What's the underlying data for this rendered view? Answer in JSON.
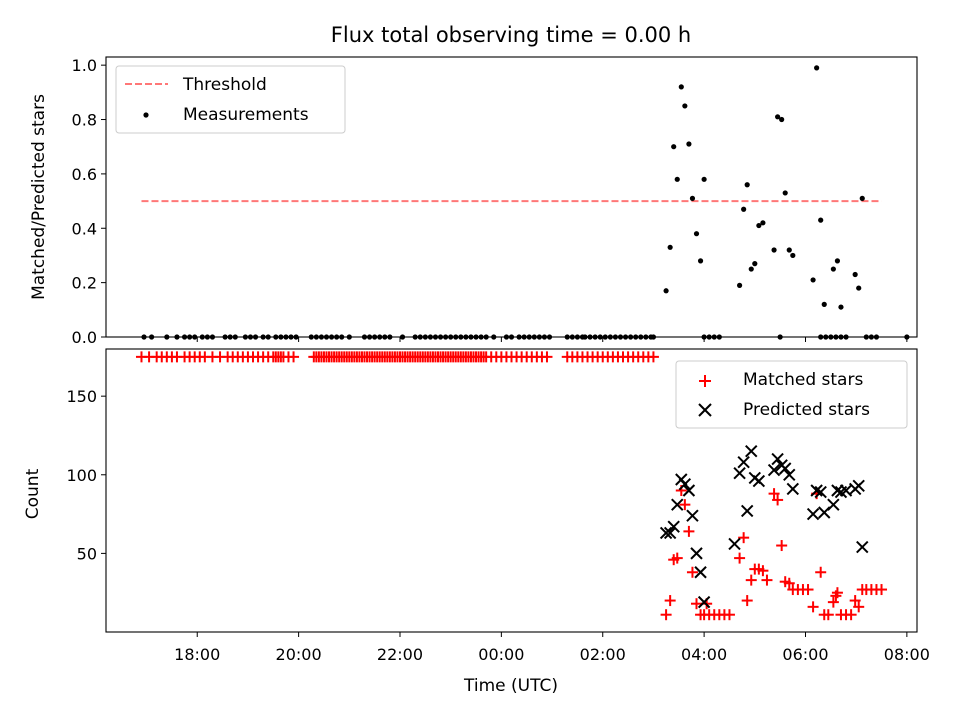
{
  "chart_data": {
    "title": "Flux total observing time = 0.00 h",
    "xlabel": "Time (UTC)",
    "x_unit": "hours (UTC, day-wrapped)",
    "xlim": [
      16.2,
      32.2
    ],
    "x_ticks": [
      {
        "x": 18,
        "label": "18:00"
      },
      {
        "x": 20,
        "label": "20:00"
      },
      {
        "x": 22,
        "label": "22:00"
      },
      {
        "x": 24,
        "label": "00:00"
      },
      {
        "x": 26,
        "label": "02:00"
      },
      {
        "x": 28,
        "label": "04:00"
      },
      {
        "x": 30,
        "label": "06:00"
      },
      {
        "x": 32,
        "label": "08:00"
      }
    ],
    "panels": [
      {
        "id": "ratio",
        "type": "scatter",
        "ylabel": "Matched/Predicted stars",
        "ylim": [
          0,
          1.03
        ],
        "y_ticks": [
          0.0,
          0.2,
          0.4,
          0.6,
          0.8,
          1.0
        ],
        "y_tick_labels": [
          "0.0",
          "0.2",
          "0.4",
          "0.6",
          "0.8",
          "1.0"
        ],
        "legend": {
          "position": "top-left",
          "entries": [
            "Threshold",
            "Measurements"
          ]
        },
        "threshold": {
          "name": "Threshold",
          "y": 0.5,
          "x_range": [
            16.9,
            31.5
          ],
          "color": "#ff7777"
        },
        "measurements": {
          "name": "Measurements",
          "color": "#000000",
          "zero_x": [
            16.95,
            17.1,
            17.4,
            17.6,
            17.75,
            17.85,
            17.95,
            18.1,
            18.2,
            18.3,
            18.55,
            18.65,
            18.75,
            18.95,
            19.05,
            19.15,
            19.3,
            19.4,
            19.55,
            19.65,
            19.75,
            19.85,
            19.95,
            20.25,
            20.35,
            20.45,
            20.55,
            20.65,
            20.75,
            20.85,
            21.0,
            21.3,
            21.4,
            21.5,
            21.6,
            21.7,
            21.8,
            22.05,
            22.3,
            22.4,
            22.5,
            22.6,
            22.7,
            22.8,
            22.9,
            23.0,
            23.1,
            23.2,
            23.3,
            23.4,
            23.5,
            23.6,
            23.7,
            23.85,
            24.1,
            24.2,
            24.35,
            24.45,
            24.55,
            24.65,
            24.75,
            24.85,
            24.95,
            25.3,
            25.4,
            25.5,
            25.6,
            25.65,
            25.75,
            25.85,
            25.95,
            26.05,
            26.15,
            26.25,
            26.35,
            26.45,
            26.55,
            26.65,
            26.75,
            26.85,
            26.95,
            27.0,
            28.0,
            28.1,
            28.2,
            28.3,
            29.5,
            30.3,
            30.4,
            30.5,
            30.6,
            30.7,
            30.8,
            31.2,
            31.3,
            31.4,
            32.0
          ],
          "points": [
            {
              "x": 27.25,
              "y": 0.17
            },
            {
              "x": 27.33,
              "y": 0.33
            },
            {
              "x": 27.4,
              "y": 0.7
            },
            {
              "x": 27.47,
              "y": 0.58
            },
            {
              "x": 27.55,
              "y": 0.92
            },
            {
              "x": 27.62,
              "y": 0.85
            },
            {
              "x": 27.7,
              "y": 0.71
            },
            {
              "x": 27.77,
              "y": 0.51
            },
            {
              "x": 27.85,
              "y": 0.38
            },
            {
              "x": 27.93,
              "y": 0.28
            },
            {
              "x": 28.0,
              "y": 0.58
            },
            {
              "x": 28.7,
              "y": 0.19
            },
            {
              "x": 28.78,
              "y": 0.47
            },
            {
              "x": 28.85,
              "y": 0.56
            },
            {
              "x": 28.93,
              "y": 0.25
            },
            {
              "x": 29.0,
              "y": 0.27
            },
            {
              "x": 29.08,
              "y": 0.41
            },
            {
              "x": 29.16,
              "y": 0.42
            },
            {
              "x": 29.38,
              "y": 0.32
            },
            {
              "x": 29.45,
              "y": 0.81
            },
            {
              "x": 29.53,
              "y": 0.8
            },
            {
              "x": 29.6,
              "y": 0.53
            },
            {
              "x": 29.68,
              "y": 0.32
            },
            {
              "x": 29.75,
              "y": 0.3
            },
            {
              "x": 30.15,
              "y": 0.21
            },
            {
              "x": 30.22,
              "y": 0.99
            },
            {
              "x": 30.3,
              "y": 0.43
            },
            {
              "x": 30.37,
              "y": 0.12
            },
            {
              "x": 30.55,
              "y": 0.25
            },
            {
              "x": 30.63,
              "y": 0.28
            },
            {
              "x": 30.7,
              "y": 0.11
            },
            {
              "x": 30.98,
              "y": 0.23
            },
            {
              "x": 31.05,
              "y": 0.18
            },
            {
              "x": 31.12,
              "y": 0.51
            }
          ]
        }
      },
      {
        "id": "counts",
        "type": "scatter",
        "ylabel": "Count",
        "ylim": [
          0,
          180
        ],
        "y_ticks": [
          50,
          100,
          150
        ],
        "y_tick_labels": [
          "50",
          "100",
          "150"
        ],
        "legend": {
          "position": "top-right",
          "entries": [
            "Matched stars",
            "Predicted stars"
          ]
        },
        "series": [
          {
            "name": "Matched stars",
            "marker": "plus",
            "color": "#ff0000",
            "const_x": [
              16.9,
              17.05,
              17.2,
              17.3,
              17.4,
              17.5,
              17.6,
              17.75,
              17.85,
              17.95,
              18.05,
              18.15,
              18.3,
              18.45,
              18.6,
              18.7,
              18.8,
              18.9,
              19.0,
              19.1,
              19.2,
              19.3,
              19.4,
              19.5,
              19.55,
              19.6,
              19.65,
              19.7,
              19.8,
              19.9,
              20.3,
              20.35,
              20.4,
              20.45,
              20.5,
              20.55,
              20.6,
              20.65,
              20.7,
              20.75,
              20.8,
              20.85,
              20.9,
              20.95,
              21.0,
              21.05,
              21.1,
              21.15,
              21.2,
              21.25,
              21.3,
              21.35,
              21.4,
              21.45,
              21.5,
              21.55,
              21.6,
              21.65,
              21.7,
              21.75,
              21.8,
              21.85,
              21.9,
              21.95,
              22.0,
              22.05,
              22.1,
              22.15,
              22.2,
              22.25,
              22.3,
              22.35,
              22.4,
              22.45,
              22.5,
              22.55,
              22.6,
              22.65,
              22.7,
              22.75,
              22.8,
              22.85,
              22.9,
              22.95,
              23.0,
              23.05,
              23.1,
              23.15,
              23.2,
              23.25,
              23.3,
              23.35,
              23.4,
              23.45,
              23.5,
              23.55,
              23.6,
              23.65,
              23.7,
              23.8,
              23.9,
              24.0,
              24.1,
              24.2,
              24.3,
              24.4,
              24.5,
              24.6,
              24.7,
              24.8,
              24.9,
              25.3,
              25.4,
              25.5,
              25.6,
              25.7,
              25.8,
              25.9,
              26.0,
              26.1,
              26.2,
              26.3,
              26.4,
              26.5,
              26.6,
              26.7,
              26.8,
              26.9,
              27.0
            ],
            "const_y": 175,
            "points": [
              {
                "x": 27.25,
                "y": 11
              },
              {
                "x": 27.33,
                "y": 20
              },
              {
                "x": 27.4,
                "y": 46
              },
              {
                "x": 27.47,
                "y": 47
              },
              {
                "x": 27.55,
                "y": 90
              },
              {
                "x": 27.62,
                "y": 81
              },
              {
                "x": 27.7,
                "y": 64
              },
              {
                "x": 27.77,
                "y": 38
              },
              {
                "x": 27.85,
                "y": 18
              },
              {
                "x": 27.93,
                "y": 11
              },
              {
                "x": 28.0,
                "y": 11
              },
              {
                "x": 28.05,
                "y": 18
              },
              {
                "x": 28.1,
                "y": 11
              },
              {
                "x": 28.2,
                "y": 11
              },
              {
                "x": 28.3,
                "y": 11
              },
              {
                "x": 28.4,
                "y": 11
              },
              {
                "x": 28.5,
                "y": 11
              },
              {
                "x": 28.7,
                "y": 47
              },
              {
                "x": 28.78,
                "y": 60
              },
              {
                "x": 28.85,
                "y": 20
              },
              {
                "x": 28.93,
                "y": 33
              },
              {
                "x": 29.0,
                "y": 40
              },
              {
                "x": 29.08,
                "y": 40
              },
              {
                "x": 29.16,
                "y": 39
              },
              {
                "x": 29.24,
                "y": 33
              },
              {
                "x": 29.38,
                "y": 88
              },
              {
                "x": 29.45,
                "y": 84
              },
              {
                "x": 29.53,
                "y": 55
              },
              {
                "x": 29.6,
                "y": 32
              },
              {
                "x": 29.68,
                "y": 31
              },
              {
                "x": 29.75,
                "y": 27
              },
              {
                "x": 29.85,
                "y": 27
              },
              {
                "x": 29.95,
                "y": 27
              },
              {
                "x": 30.05,
                "y": 27
              },
              {
                "x": 30.15,
                "y": 16
              },
              {
                "x": 30.22,
                "y": 88
              },
              {
                "x": 30.3,
                "y": 38
              },
              {
                "x": 30.37,
                "y": 11
              },
              {
                "x": 30.45,
                "y": 11
              },
              {
                "x": 30.55,
                "y": 19
              },
              {
                "x": 30.6,
                "y": 23
              },
              {
                "x": 30.63,
                "y": 25
              },
              {
                "x": 30.7,
                "y": 11
              },
              {
                "x": 30.8,
                "y": 11
              },
              {
                "x": 30.9,
                "y": 11
              },
              {
                "x": 30.98,
                "y": 20
              },
              {
                "x": 31.05,
                "y": 16
              },
              {
                "x": 31.12,
                "y": 27
              },
              {
                "x": 31.2,
                "y": 27
              },
              {
                "x": 31.3,
                "y": 27
              },
              {
                "x": 31.4,
                "y": 27
              },
              {
                "x": 31.5,
                "y": 27
              }
            ]
          },
          {
            "name": "Predicted stars",
            "marker": "x",
            "color": "#000000",
            "points": [
              {
                "x": 27.25,
                "y": 63
              },
              {
                "x": 27.33,
                "y": 63
              },
              {
                "x": 27.4,
                "y": 67
              },
              {
                "x": 27.47,
                "y": 81
              },
              {
                "x": 27.55,
                "y": 97
              },
              {
                "x": 27.62,
                "y": 94
              },
              {
                "x": 27.7,
                "y": 90
              },
              {
                "x": 27.77,
                "y": 74
              },
              {
                "x": 27.85,
                "y": 50
              },
              {
                "x": 27.93,
                "y": 38
              },
              {
                "x": 28.0,
                "y": 19
              },
              {
                "x": 28.6,
                "y": 56
              },
              {
                "x": 28.7,
                "y": 101
              },
              {
                "x": 28.78,
                "y": 108
              },
              {
                "x": 28.85,
                "y": 77
              },
              {
                "x": 28.93,
                "y": 115
              },
              {
                "x": 29.0,
                "y": 98
              },
              {
                "x": 29.08,
                "y": 96
              },
              {
                "x": 29.38,
                "y": 103
              },
              {
                "x": 29.45,
                "y": 110
              },
              {
                "x": 29.53,
                "y": 106
              },
              {
                "x": 29.6,
                "y": 104
              },
              {
                "x": 29.68,
                "y": 100
              },
              {
                "x": 29.75,
                "y": 91
              },
              {
                "x": 30.15,
                "y": 75
              },
              {
                "x": 30.22,
                "y": 90
              },
              {
                "x": 30.3,
                "y": 89
              },
              {
                "x": 30.37,
                "y": 76
              },
              {
                "x": 30.55,
                "y": 81
              },
              {
                "x": 30.63,
                "y": 90
              },
              {
                "x": 30.7,
                "y": 89
              },
              {
                "x": 30.8,
                "y": 90
              },
              {
                "x": 30.98,
                "y": 91
              },
              {
                "x": 31.05,
                "y": 93
              },
              {
                "x": 31.12,
                "y": 54
              }
            ]
          }
        ]
      }
    ]
  }
}
